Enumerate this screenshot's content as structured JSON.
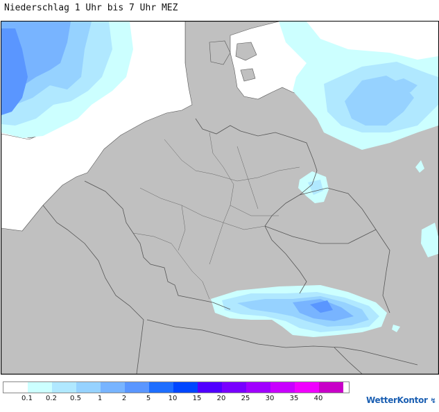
{
  "header": {
    "title": "Niederschlag 1 Uhr bis 7 Uhr MEZ"
  },
  "map": {
    "land_color": "#c0c0c0",
    "sea_color": "#ffffff",
    "border_color": "#555555"
  },
  "legend": {
    "colors": [
      "#ffffff",
      "#ccffff",
      "#b0e8ff",
      "#96d2ff",
      "#78b4ff",
      "#5a96ff",
      "#1e6eff",
      "#0046ff",
      "#5000ff",
      "#7800ff",
      "#a000ff",
      "#c800ff",
      "#f000ff",
      "#c800c8"
    ],
    "labels": [
      "0.1",
      "0.2",
      "0.5",
      "1",
      "2",
      "5",
      "10",
      "15",
      "20",
      "25",
      "30",
      "35",
      "40"
    ]
  },
  "brand": {
    "name": "WetterKontor",
    "mark": "↯"
  }
}
